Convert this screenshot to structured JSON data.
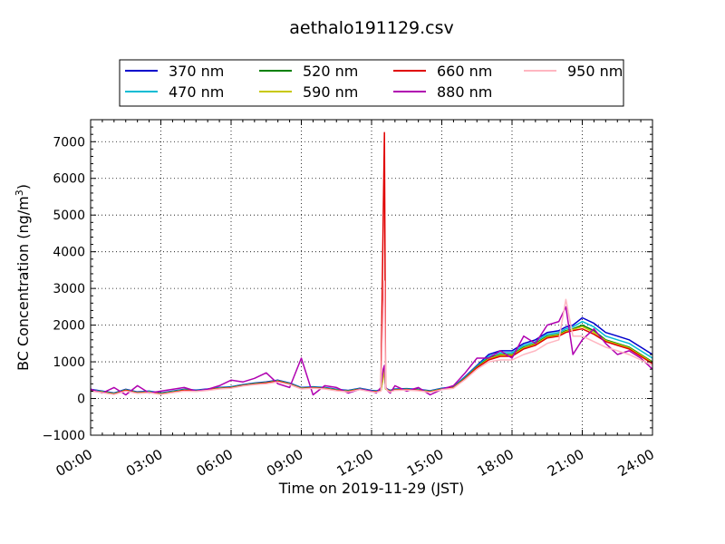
{
  "chart_data": {
    "type": "line",
    "title": "aethalo191129.csv",
    "xlabel": "Time on 2019-11-29 (JST)",
    "ylabel": "BC Concentration (ng/m",
    "ylabel_sup": "3",
    "ylabel_end": ")",
    "xlim": [
      0,
      24
    ],
    "ylim": [
      -1000,
      7600
    ],
    "x_ticks": [
      {
        "hour": 0,
        "label": "00:00"
      },
      {
        "hour": 3,
        "label": "03:00"
      },
      {
        "hour": 6,
        "label": "06:00"
      },
      {
        "hour": 9,
        "label": "09:00"
      },
      {
        "hour": 12,
        "label": "12:00"
      },
      {
        "hour": 15,
        "label": "15:00"
      },
      {
        "hour": 18,
        "label": "18:00"
      },
      {
        "hour": 21,
        "label": "21:00"
      },
      {
        "hour": 24,
        "label": "24:00"
      }
    ],
    "y_ticks": [
      -1000,
      0,
      1000,
      2000,
      3000,
      4000,
      5000,
      6000,
      7000
    ],
    "grid": true,
    "legend_position": "top",
    "x_unit": "hours",
    "x": [
      0,
      0.5,
      1,
      1.5,
      2,
      2.5,
      3,
      3.5,
      4,
      4.5,
      5,
      5.5,
      6,
      6.5,
      7,
      7.5,
      8,
      8.5,
      9,
      9.5,
      10,
      10.5,
      11,
      11.5,
      12,
      12.2,
      12.4,
      12.5,
      12.55,
      12.6,
      12.7,
      12.8,
      13,
      13.5,
      14,
      14.5,
      15,
      15.5,
      16,
      16.5,
      17,
      17.5,
      18,
      18.5,
      19,
      19.5,
      20,
      20.3,
      20.6,
      21,
      21.5,
      22,
      22.5,
      23,
      23.5,
      24
    ],
    "series": [
      {
        "name": "370 nm",
        "color": "#0000cc",
        "values": [
          250,
          200,
          150,
          250,
          180,
          200,
          150,
          200,
          250,
          230,
          260,
          300,
          320,
          380,
          420,
          450,
          500,
          420,
          300,
          320,
          300,
          250,
          220,
          280,
          220,
          210,
          240,
          700,
          900,
          280,
          250,
          220,
          260,
          270,
          250,
          210,
          280,
          320,
          600,
          900,
          1200,
          1300,
          1300,
          1500,
          1600,
          1800,
          1850,
          1950,
          2000,
          2200,
          2050,
          1800,
          1700,
          1600,
          1400,
          1200
        ]
      },
      {
        "name": "470 nm",
        "color": "#00bcd4",
        "values": [
          240,
          190,
          140,
          240,
          170,
          190,
          140,
          190,
          240,
          220,
          250,
          290,
          310,
          370,
          410,
          440,
          490,
          410,
          290,
          310,
          290,
          240,
          210,
          270,
          210,
          200,
          230,
          660,
          860,
          270,
          240,
          210,
          250,
          260,
          240,
          200,
          270,
          310,
          580,
          880,
          1150,
          1250,
          1250,
          1450,
          1550,
          1750,
          1800,
          1900,
          1950,
          2100,
          1950,
          1700,
          1600,
          1500,
          1300,
          1100
        ]
      },
      {
        "name": "520 nm",
        "color": "#008000",
        "values": [
          230,
          180,
          130,
          230,
          160,
          180,
          130,
          180,
          230,
          210,
          240,
          280,
          300,
          360,
          400,
          430,
          480,
          400,
          280,
          300,
          280,
          230,
          200,
          260,
          200,
          190,
          220,
          600,
          820,
          260,
          230,
          200,
          240,
          250,
          230,
          190,
          260,
          300,
          560,
          860,
          1100,
          1200,
          1200,
          1400,
          1500,
          1700,
          1750,
          1850,
          1900,
          2000,
          1850,
          1600,
          1500,
          1400,
          1200,
          1000
        ]
      },
      {
        "name": "590 nm",
        "color": "#c8c800",
        "values": [
          225,
          175,
          125,
          225,
          155,
          175,
          125,
          175,
          225,
          205,
          235,
          275,
          295,
          355,
          395,
          425,
          475,
          395,
          275,
          295,
          275,
          225,
          195,
          255,
          195,
          185,
          215,
          560,
          780,
          255,
          225,
          195,
          235,
          245,
          225,
          185,
          255,
          295,
          550,
          850,
          1080,
          1180,
          1180,
          1380,
          1480,
          1680,
          1730,
          1830,
          1880,
          1960,
          1800,
          1580,
          1480,
          1380,
          1180,
          980
        ]
      },
      {
        "name": "660 nm",
        "color": "#e00000",
        "values": [
          220,
          170,
          120,
          220,
          150,
          170,
          120,
          170,
          220,
          200,
          230,
          270,
          290,
          350,
          390,
          420,
          470,
          390,
          270,
          290,
          270,
          220,
          190,
          250,
          190,
          180,
          210,
          5000,
          7250,
          300,
          220,
          190,
          230,
          240,
          220,
          180,
          250,
          290,
          540,
          840,
          1050,
          1150,
          1150,
          1350,
          1450,
          1650,
          1700,
          1800,
          1850,
          1900,
          1750,
          1550,
          1450,
          1350,
          1150,
          950
        ]
      },
      {
        "name": "880 nm",
        "color": "#b000b0",
        "values": [
          250,
          150,
          300,
          100,
          350,
          150,
          200,
          250,
          300,
          200,
          250,
          350,
          500,
          450,
          550,
          700,
          400,
          300,
          1100,
          100,
          350,
          300,
          150,
          250,
          200,
          150,
          300,
          800,
          900,
          300,
          200,
          150,
          350,
          200,
          300,
          100,
          250,
          350,
          700,
          1100,
          1100,
          1300,
          1100,
          1700,
          1500,
          2000,
          2100,
          2500,
          1200,
          1600,
          1900,
          1500,
          1200,
          1300,
          1100,
          800
        ]
      },
      {
        "name": "950 nm",
        "color": "#ffb6c1",
        "values": [
          200,
          160,
          110,
          200,
          140,
          160,
          110,
          160,
          200,
          190,
          220,
          260,
          280,
          340,
          380,
          400,
          450,
          380,
          260,
          280,
          260,
          210,
          180,
          240,
          180,
          170,
          200,
          2500,
          3200,
          280,
          210,
          180,
          220,
          230,
          210,
          170,
          240,
          280,
          520,
          800,
          1000,
          1050,
          1050,
          1200,
          1300,
          1500,
          1600,
          2700,
          1700,
          1700,
          1550,
          1400,
          1300,
          1200,
          1050,
          900
        ]
      }
    ]
  }
}
